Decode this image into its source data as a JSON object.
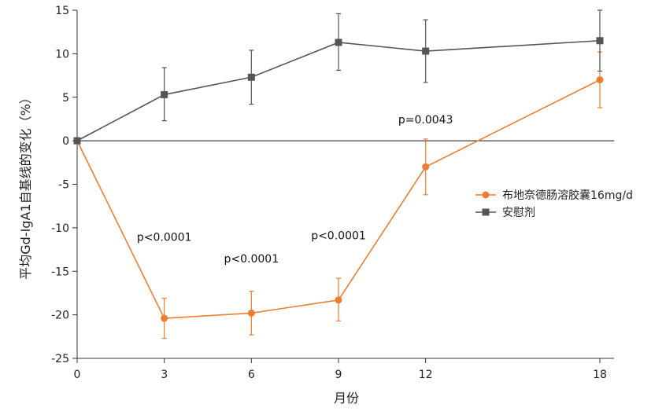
{
  "chart_data": {
    "type": "line",
    "xlabel": "月份",
    "ylabel": "平均Gd-IgA1自基线的变化（%）",
    "x": [
      0,
      3,
      6,
      9,
      12,
      18
    ],
    "xticks": [
      0,
      3,
      6,
      9,
      12,
      18
    ],
    "xlim": [
      0,
      18
    ],
    "ylim": [
      -25,
      15
    ],
    "yticks": [
      15,
      10,
      5,
      0,
      -5,
      -10,
      -15,
      -20,
      -25
    ],
    "grid": false,
    "legend_position": "right",
    "series": [
      {
        "name": "布地奈德肠溶胶囊16mg/d",
        "color": "#ED7D31",
        "marker": "circle",
        "values": [
          0,
          -20.4,
          -19.8,
          -18.3,
          -3.0,
          7.0
        ],
        "err_upper": [
          0,
          2.3,
          2.5,
          2.5,
          3.2,
          3.2
        ],
        "err_lower": [
          0,
          2.3,
          2.5,
          2.4,
          3.2,
          3.2
        ]
      },
      {
        "name": "安慰剂",
        "color": "#555555",
        "marker": "square",
        "values": [
          0,
          5.3,
          7.3,
          11.3,
          10.3,
          11.5
        ],
        "err_upper": [
          0,
          3.1,
          3.1,
          3.3,
          3.6,
          3.5
        ],
        "err_lower": [
          0,
          3.0,
          3.1,
          3.2,
          3.6,
          3.5
        ]
      }
    ],
    "annotations": [
      {
        "text": "p<0.0001",
        "x": 3,
        "y": -11.5
      },
      {
        "text": "p<0.0001",
        "x": 6,
        "y": -14.0
      },
      {
        "text": "p<0.0001",
        "x": 9,
        "y": -11.3
      },
      {
        "text": "p=0.0043",
        "x": 12,
        "y": 2.0
      }
    ]
  }
}
